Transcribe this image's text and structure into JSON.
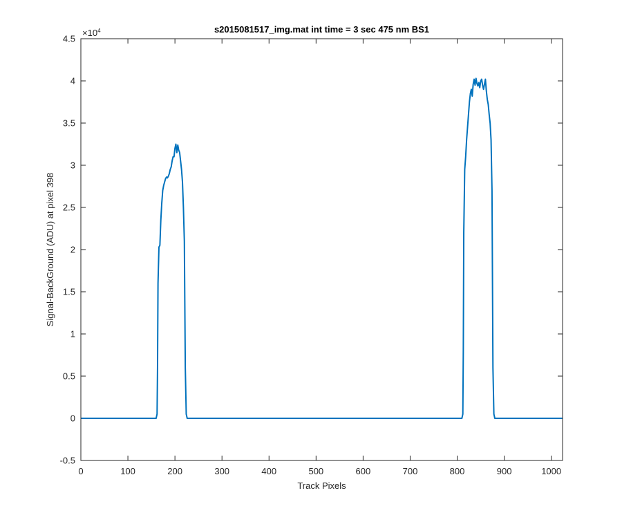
{
  "chart_data": {
    "type": "line",
    "title": "s2015081517_img.mat int time = 3 sec  475 nm BS1",
    "xlabel": "Track Pixels",
    "ylabel": "Signal-BackGround (ADU) at pixel 398",
    "y_exponent_label": "×10",
    "y_exponent_power": "4",
    "xlim": [
      0,
      1024
    ],
    "ylim": [
      -0.5,
      4.5
    ],
    "y_multiplier": 10000,
    "x_ticks": [
      0,
      100,
      200,
      300,
      400,
      500,
      600,
      700,
      800,
      900,
      1000
    ],
    "x_tick_labels": [
      "0",
      "100",
      "200",
      "300",
      "400",
      "500",
      "600",
      "700",
      "800",
      "900",
      "1000"
    ],
    "y_ticks": [
      -0.5,
      0,
      0.5,
      1,
      1.5,
      2,
      2.5,
      3,
      3.5,
      4,
      4.5
    ],
    "y_tick_labels": [
      "-0.5",
      "0",
      "0.5",
      "1",
      "1.5",
      "2",
      "2.5",
      "3",
      "3.5",
      "4",
      "4.5"
    ],
    "grid": false,
    "line_color": "#0072BD",
    "series": [
      {
        "x": [
          0,
          100,
          160,
          162,
          163,
          164,
          166,
          168,
          170,
          172,
          174,
          176,
          178,
          180,
          182,
          184,
          186,
          188,
          190,
          192,
          194,
          196,
          198,
          200,
          202,
          204,
          206,
          208,
          210,
          212,
          214,
          216,
          218,
          220,
          222,
          224,
          226,
          228,
          230,
          240,
          300,
          400,
          500,
          600,
          700,
          800,
          810,
          812,
          813,
          814,
          816,
          818,
          820,
          822,
          824,
          826,
          828,
          830,
          832,
          834,
          836,
          838,
          840,
          842,
          844,
          846,
          848,
          850,
          852,
          854,
          856,
          858,
          860,
          862,
          864,
          866,
          868,
          870,
          872,
          874,
          876,
          878,
          880,
          900,
          1000,
          1024
        ],
        "y": [
          0,
          0,
          0,
          0.05,
          0.6,
          1.6,
          2.03,
          2.05,
          2.35,
          2.55,
          2.7,
          2.76,
          2.8,
          2.84,
          2.86,
          2.85,
          2.87,
          2.9,
          2.95,
          2.98,
          3.05,
          3.1,
          3.1,
          3.2,
          3.25,
          3.15,
          3.24,
          3.18,
          3.15,
          3.05,
          2.95,
          2.8,
          2.5,
          2.1,
          0.6,
          0.05,
          0,
          0,
          0,
          0,
          0,
          0,
          0,
          0,
          0,
          0,
          0,
          0.05,
          0.8,
          2.2,
          2.95,
          3.1,
          3.3,
          3.45,
          3.6,
          3.75,
          3.85,
          3.9,
          3.82,
          3.96,
          4.02,
          3.95,
          4.03,
          3.97,
          3.94,
          3.98,
          3.92,
          4.0,
          4.02,
          3.95,
          3.9,
          3.96,
          4.02,
          3.88,
          3.78,
          3.72,
          3.6,
          3.5,
          3.3,
          2.7,
          0.6,
          0.05,
          0,
          0,
          0,
          0
        ]
      }
    ]
  }
}
